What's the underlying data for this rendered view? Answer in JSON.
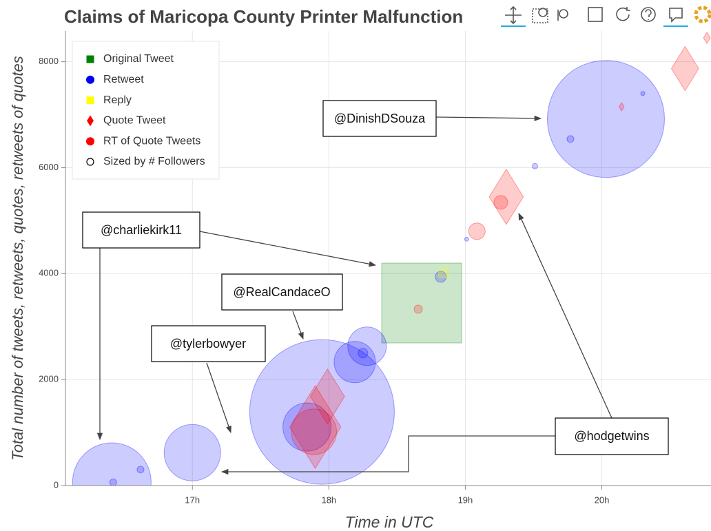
{
  "chart_data": {
    "type": "scatter",
    "title": "Claims of Maricopa County Printer Malfunction",
    "x_label": "Time in UTC",
    "y_label": "Total number of tweets, retweets, quotes, retweets of quotes",
    "xlim": [
      16.07,
      20.8
    ],
    "xticks": [
      {
        "value": 17,
        "label": "17h"
      },
      {
        "value": 18,
        "label": "18h"
      },
      {
        "value": 19,
        "label": "19h"
      },
      {
        "value": 20,
        "label": "20h"
      }
    ],
    "ylim": [
      0,
      8580
    ],
    "yticks": [
      0,
      2000,
      4000,
      6000,
      8000
    ],
    "grid": true,
    "legend_position": "top-left",
    "size_legend": "Sized by # Followers",
    "series": [
      {
        "name": "Original Tweet",
        "color": "#008000",
        "marker": "square",
        "x": [
          18.68
        ],
        "values": [
          3445
        ],
        "sizes": [
          58
        ]
      },
      {
        "name": "Retweet",
        "color": "#0000ff",
        "marker": "circle",
        "x": [
          16.41,
          17.0,
          17.95,
          18.19,
          18.28,
          20.03,
          17.84,
          16.42,
          16.62,
          18.82,
          19.77,
          19.51,
          18.25,
          19.01,
          20.3
        ],
        "values": [
          65,
          620,
          1390,
          2330,
          2630,
          6920,
          1105,
          60,
          300,
          3940,
          6540,
          6030,
          2500,
          4650,
          7400
        ],
        "sizes": [
          57,
          41,
          105,
          30,
          28,
          85,
          35,
          5,
          5,
          8,
          5,
          4,
          7,
          3,
          3
        ]
      },
      {
        "name": "Reply",
        "color": "#ffff00",
        "marker": "square",
        "x": [
          18.84
        ],
        "values": [
          4020
        ],
        "sizes": [
          7
        ]
      },
      {
        "name": "Quote Tweet",
        "color": "#ff0000",
        "marker": "diamond",
        "x": [
          17.9,
          17.99,
          19.3,
          20.61,
          20.145,
          20.77
        ],
        "values": [
          1105,
          1680,
          5450,
          7870,
          7150,
          8450
        ],
        "sizes": [
          60,
          40,
          40,
          32,
          6,
          8
        ]
      },
      {
        "name": "RT of Quote Tweets",
        "color": "#ff0000",
        "marker": "circle",
        "x": [
          17.89,
          19.26,
          19.085,
          18.655
        ],
        "values": [
          1015,
          5345,
          4800,
          3330
        ],
        "sizes": [
          33,
          10,
          12,
          6
        ]
      }
    ],
    "annotations": [
      "@charliekirk11",
      "@RealCandaceO",
      "@tylerbowyer",
      "@DinishDSouza",
      "@hodgetwins"
    ]
  }
}
